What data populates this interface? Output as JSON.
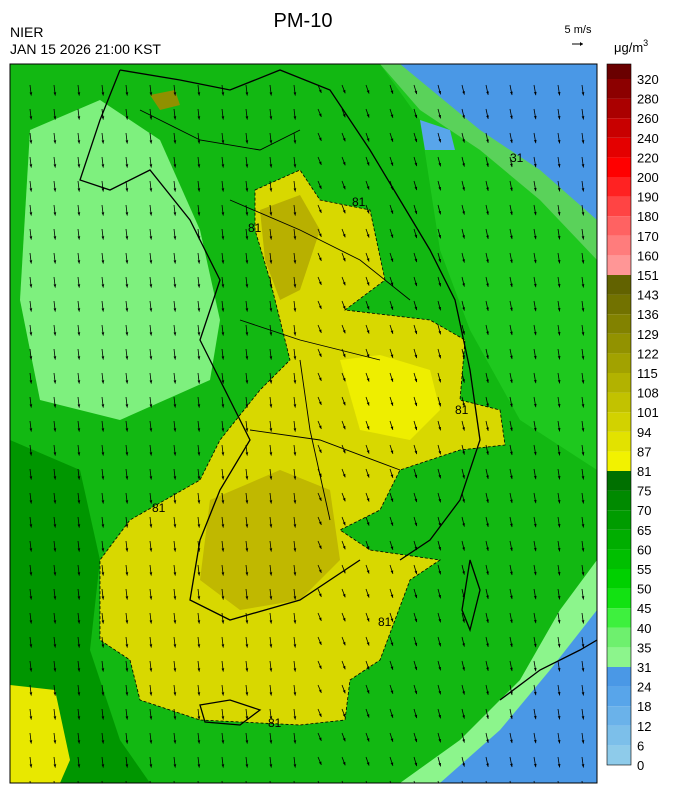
{
  "header": {
    "title": "PM-10",
    "agency": "NIER",
    "datetime": "JAN 15 2026 21:00 KST"
  },
  "wind_legend": {
    "label": "5 m/s"
  },
  "colorbar": {
    "unit": "μg/m",
    "unit_sup": "3",
    "labels": [
      "0",
      "6",
      "12",
      "18",
      "24",
      "31",
      "35",
      "40",
      "45",
      "50",
      "55",
      "60",
      "65",
      "70",
      "75",
      "81",
      "87",
      "94",
      "101",
      "108",
      "115",
      "122",
      "129",
      "136",
      "143",
      "151",
      "160",
      "170",
      "180",
      "190",
      "200",
      "220",
      "240",
      "260",
      "280",
      "320"
    ],
    "colors": [
      "#8ecbea",
      "#7cbfea",
      "#6ab2ea",
      "#58a5ea",
      "#4a98e6",
      "#8cf58c",
      "#6ef06e",
      "#3ef03e",
      "#12e212",
      "#00d000",
      "#00bf00",
      "#00ae00",
      "#009c00",
      "#008a00",
      "#007000",
      "#f2f200",
      "#e2e200",
      "#d2d200",
      "#c2c200",
      "#b2b200",
      "#a2a200",
      "#929200",
      "#828200",
      "#727200",
      "#626200",
      "#ff9696",
      "#ff7c7c",
      "#ff6262",
      "#ff4444",
      "#ff2222",
      "#ff0000",
      "#e40000",
      "#c80000",
      "#aa0000",
      "#8c0000",
      "#6a0000"
    ]
  },
  "map": {
    "contour_labels": [
      "81",
      "81",
      "81",
      "81",
      "81",
      "81",
      "31"
    ]
  }
}
